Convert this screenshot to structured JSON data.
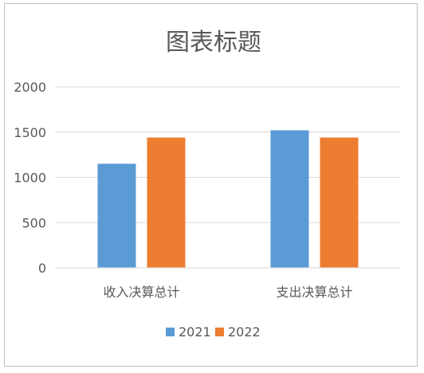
{
  "chart_data": {
    "type": "bar",
    "title": "图表标题",
    "categories": [
      "收入决算总计",
      "支出决算总计"
    ],
    "series": [
      {
        "name": "2021",
        "values": [
          1150,
          1520
        ],
        "color": "#5b9bd5"
      },
      {
        "name": "2022",
        "values": [
          1440,
          1440
        ],
        "color": "#ed7d31"
      }
    ],
    "ylim": [
      0,
      2000
    ],
    "yticks": [
      0,
      500,
      1000,
      1500,
      2000
    ],
    "grid": true,
    "legend_position": "bottom",
    "gridline_color": "#d9d9d9",
    "text_color": "#595959"
  }
}
